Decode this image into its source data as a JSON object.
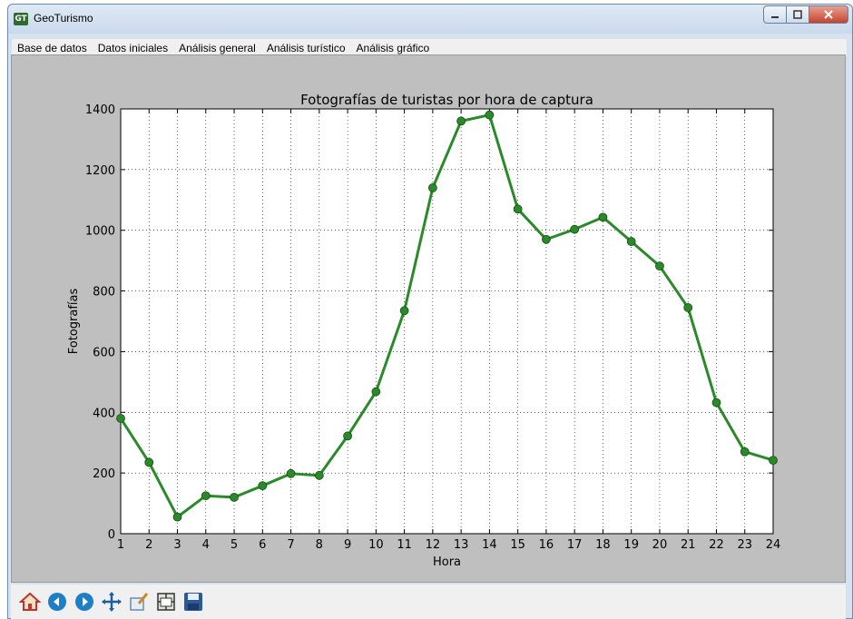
{
  "window": {
    "title": "GeoTurismo",
    "icon_label": "GT"
  },
  "menu": {
    "items": [
      {
        "label": "Base de datos"
      },
      {
        "label": "Datos iniciales"
      },
      {
        "label": "Análisis general"
      },
      {
        "label": "Análisis turístico"
      },
      {
        "label": "Análisis gráfico"
      }
    ]
  },
  "toolbar": {
    "buttons": [
      {
        "name": "home-icon"
      },
      {
        "name": "back-icon"
      },
      {
        "name": "forward-icon"
      },
      {
        "name": "pan-icon"
      },
      {
        "name": "zoom-icon"
      },
      {
        "name": "configure-subplots-icon"
      },
      {
        "name": "save-icon"
      }
    ]
  },
  "colors": {
    "series": "#2a8a2a",
    "marker": "#2a8a2a",
    "canvas_bg": "#bfbfbf",
    "plot_bg": "#ffffff"
  },
  "chart_data": {
    "type": "line",
    "title": "Fotografías de turistas por hora de captura",
    "xlabel": "Hora",
    "ylabel": "Fotografías",
    "x": [
      1,
      2,
      3,
      4,
      5,
      6,
      7,
      8,
      9,
      10,
      11,
      12,
      13,
      14,
      15,
      16,
      17,
      18,
      19,
      20,
      21,
      22,
      23,
      24
    ],
    "series": [
      {
        "values": [
          380,
          235,
          55,
          125,
          120,
          158,
          198,
          192,
          322,
          468,
          735,
          1140,
          1360,
          1380,
          1070,
          970,
          1003,
          1043,
          963,
          882,
          745,
          432,
          270,
          242
        ]
      }
    ],
    "xlim": [
      1,
      24
    ],
    "ylim": [
      0,
      1400
    ],
    "yticks": [
      0,
      200,
      400,
      600,
      800,
      1000,
      1200,
      1400
    ],
    "xticks": [
      1,
      2,
      3,
      4,
      5,
      6,
      7,
      8,
      9,
      10,
      11,
      12,
      13,
      14,
      15,
      16,
      17,
      18,
      19,
      20,
      21,
      22,
      23,
      24
    ],
    "grid": true,
    "marker": "circle"
  }
}
